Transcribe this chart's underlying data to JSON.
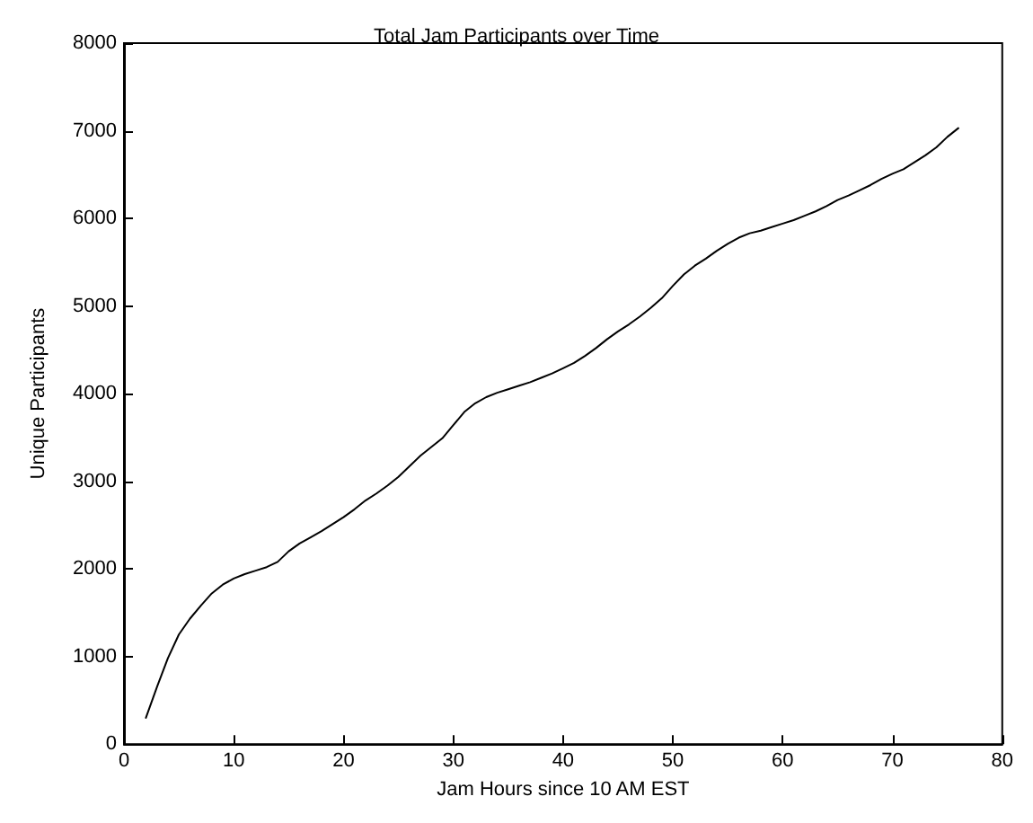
{
  "chart_data": {
    "type": "line",
    "title": "Total Jam Participants over Time",
    "xlabel": "Jam Hours since 10 AM EST",
    "ylabel": "Unique Participants",
    "x": [
      2,
      3,
      4,
      5,
      6,
      7,
      8,
      9,
      10,
      11,
      12,
      13,
      14,
      15,
      16,
      17,
      18,
      19,
      20,
      21,
      22,
      23,
      24,
      25,
      26,
      27,
      28,
      29,
      30,
      31,
      32,
      33,
      34,
      35,
      36,
      37,
      38,
      39,
      40,
      41,
      42,
      43,
      44,
      45,
      46,
      47,
      48,
      49,
      50,
      51,
      52,
      53,
      54,
      55,
      56,
      57,
      58,
      59,
      60,
      61,
      62,
      63,
      64,
      65,
      66,
      67,
      68,
      69,
      70,
      71,
      72,
      73,
      74,
      75,
      76
    ],
    "series": [
      {
        "color": "#000000",
        "values": [
          300,
          650,
          980,
          1250,
          1430,
          1580,
          1720,
          1820,
          1890,
          1940,
          1980,
          2020,
          2080,
          2200,
          2290,
          2360,
          2430,
          2510,
          2590,
          2680,
          2780,
          2860,
          2950,
          3050,
          3170,
          3290,
          3390,
          3490,
          3640,
          3790,
          3890,
          3960,
          4010,
          4050,
          4090,
          4130,
          4180,
          4230,
          4290,
          4350,
          4430,
          4520,
          4620,
          4710,
          4790,
          4880,
          4980,
          5090,
          5230,
          5360,
          5460,
          5540,
          5630,
          5710,
          5780,
          5830,
          5860,
          5900,
          5940,
          5980,
          6030,
          6080,
          6140,
          6210,
          6260,
          6320,
          6380,
          6450,
          6510,
          6560,
          6640,
          6720,
          6810,
          6930,
          7030
        ]
      }
    ],
    "xlim": [
      0,
      80
    ],
    "xticks": [
      0,
      10,
      20,
      30,
      40,
      50,
      60,
      70,
      80
    ],
    "ylim": [
      0,
      8000
    ],
    "yticks": [
      0,
      1000,
      2000,
      3000,
      4000,
      5000,
      6000,
      7000,
      8000
    ],
    "grid": false,
    "marker": "none",
    "line_style": "solid"
  }
}
